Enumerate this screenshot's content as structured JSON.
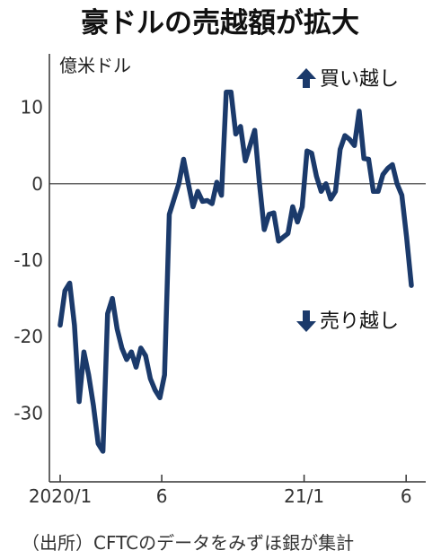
{
  "chart_data": {
    "type": "line",
    "title": "豪ドルの売越額が拡大",
    "ylabel": "億米ドル",
    "ylim": [
      -39,
      17
    ],
    "yticks": [
      10,
      0,
      -10,
      -20,
      -30
    ],
    "xticks": [
      {
        "label": "2020/1",
        "x": 0
      },
      {
        "label": "6",
        "x": 21.4
      },
      {
        "label": "21/1",
        "x": 51.4
      },
      {
        "label": "6",
        "x": 72.9
      }
    ],
    "grid": false,
    "annotations": [
      {
        "text": "買い越し",
        "arrow": "up"
      },
      {
        "text": "売り越し",
        "arrow": "down"
      }
    ],
    "source": "（出所）CFTCのデータをみずほ銀が集計",
    "series": [
      {
        "color": "#1b3a6b",
        "x": [
          0,
          1,
          2,
          3,
          4,
          5,
          6,
          7,
          8,
          9,
          10,
          11,
          12,
          13,
          14,
          15,
          16,
          17,
          18,
          19,
          20,
          21,
          22,
          23,
          24,
          25,
          26,
          27,
          28,
          29,
          30,
          31,
          32,
          33,
          34,
          35,
          36,
          37,
          38,
          39,
          40,
          41,
          42,
          43,
          44,
          45,
          46,
          47,
          48,
          49,
          50,
          51,
          52,
          53,
          54,
          55,
          56,
          57,
          58,
          59,
          60,
          61,
          62,
          63,
          64,
          65,
          66,
          67,
          68,
          69,
          70,
          71,
          72,
          73,
          74
        ],
        "values": [
          -18.5,
          -14,
          -13,
          -18.5,
          -28.5,
          -22,
          -25,
          -29,
          -34,
          -35,
          -17,
          -15,
          -19,
          -21.5,
          -23,
          -22,
          -24,
          -21.5,
          -22.5,
          -25.5,
          -27,
          -28,
          -25,
          -4,
          -2,
          0,
          3.2,
          0,
          -3,
          -1,
          -2.3,
          -2.2,
          -2.6,
          0.2,
          -1.5,
          12,
          12,
          6.5,
          7.5,
          3,
          5,
          7,
          0,
          -6,
          -4,
          -3.8,
          -7.5,
          -7,
          -6.5,
          -3,
          -5,
          -3,
          4.3,
          4,
          1,
          -1,
          0,
          -2,
          -1,
          4.5,
          6.3,
          5.8,
          5,
          9.5,
          3.3,
          3.2,
          -1,
          -1,
          1.2,
          2,
          2.5,
          0,
          -1.5,
          -7,
          -13.3
        ]
      }
    ]
  }
}
